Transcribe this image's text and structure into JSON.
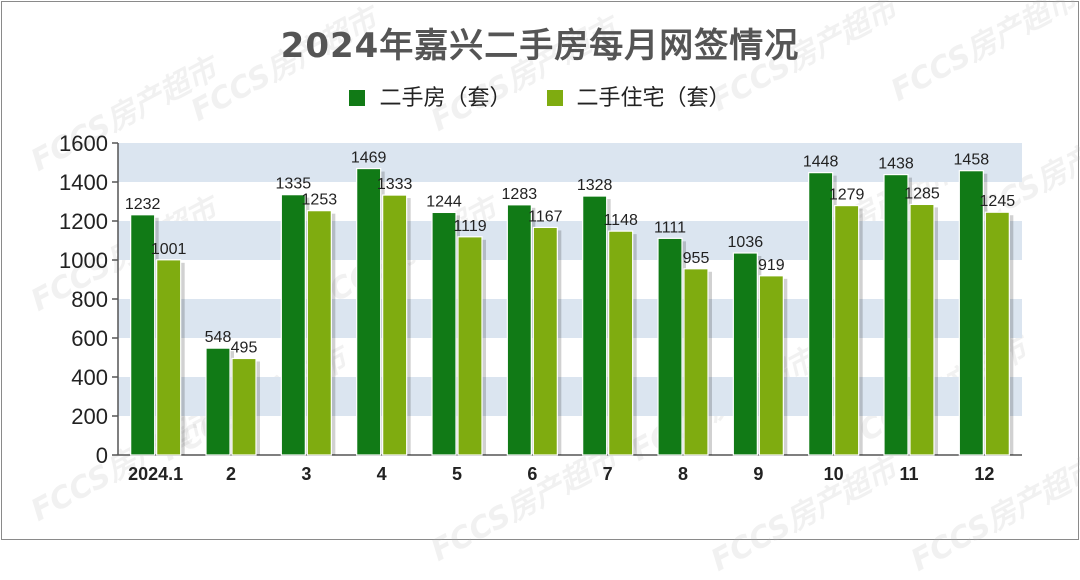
{
  "chart_data": {
    "type": "bar",
    "title": "2024年嘉兴二手房每月网签情况",
    "categories": [
      "2024.1",
      "2",
      "3",
      "4",
      "5",
      "6",
      "7",
      "8",
      "9",
      "10",
      "11",
      "12"
    ],
    "series": [
      {
        "name": "二手房（套）",
        "color": "#117a16",
        "values": [
          1232,
          548,
          1335,
          1469,
          1244,
          1283,
          1328,
          1111,
          1036,
          1448,
          1438,
          1458
        ]
      },
      {
        "name": "二手住宅（套）",
        "color": "#7fac10",
        "values": [
          1001,
          495,
          1253,
          1333,
          1119,
          1167,
          1148,
          955,
          919,
          1279,
          1285,
          1245
        ]
      }
    ],
    "ylim": [
      0,
      1600
    ],
    "yticks": [
      "0",
      "200",
      "400",
      "600",
      "800",
      "1000",
      "1200",
      "1400",
      "1600"
    ],
    "grid": "alternating horizontal bands",
    "legend": "top-center",
    "band_color": "#dbe5f0",
    "data_labels": true
  },
  "watermark": "FCCS房产超市"
}
